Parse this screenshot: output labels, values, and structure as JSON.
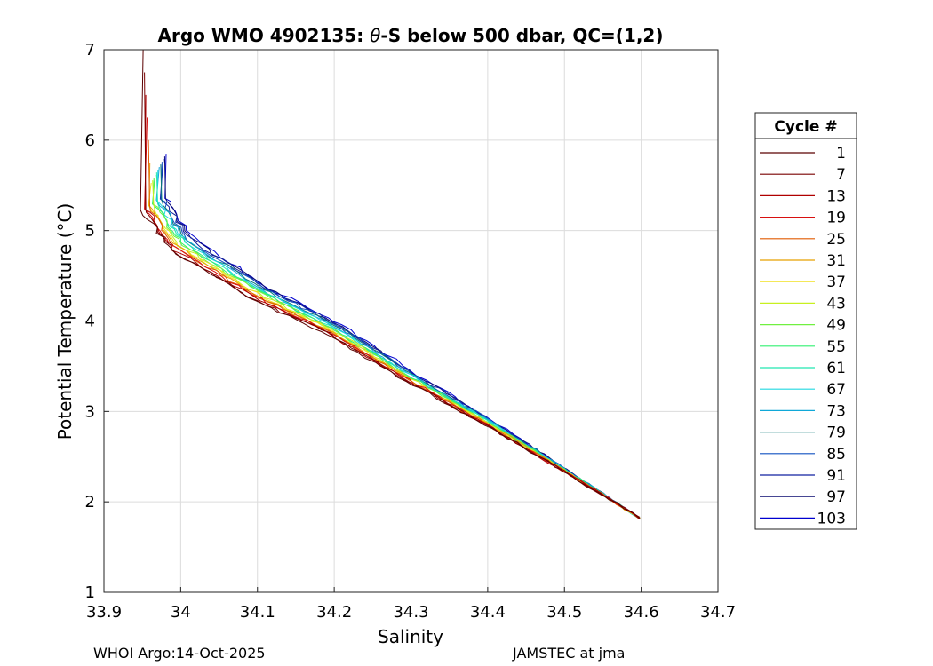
{
  "chart_data": {
    "type": "line",
    "title_prefix": "Argo WMO 4902135: ",
    "title_theta": "θ",
    "title_suffix": "-S below 500 dbar,  QC=(1,2)",
    "xlabel": "Salinity",
    "ylabel": "Potential Temperature (°C)",
    "xlim": [
      33.9,
      34.7
    ],
    "ylim": [
      1,
      7
    ],
    "xticks": [
      "33.9",
      "34",
      "34.1",
      "34.2",
      "34.3",
      "34.4",
      "34.5",
      "34.6",
      "34.7"
    ],
    "yticks": [
      "1",
      "2",
      "3",
      "4",
      "5",
      "6",
      "7"
    ],
    "grid": true,
    "legend_title": "Cycle #",
    "legend_position": "right-outside",
    "legend": [
      {
        "name": "1",
        "color": "#5a0000"
      },
      {
        "name": "7",
        "color": "#7a0000"
      },
      {
        "name": "13",
        "color": "#b00000"
      },
      {
        "name": "19",
        "color": "#d81010"
      },
      {
        "name": "25",
        "color": "#e05a00"
      },
      {
        "name": "31",
        "color": "#e8a000"
      },
      {
        "name": "37",
        "color": "#f0e020"
      },
      {
        "name": "43",
        "color": "#c8f020"
      },
      {
        "name": "49",
        "color": "#70f040"
      },
      {
        "name": "55",
        "color": "#30f070"
      },
      {
        "name": "61",
        "color": "#20e8b0"
      },
      {
        "name": "67",
        "color": "#20d8e0"
      },
      {
        "name": "73",
        "color": "#10a8d8"
      },
      {
        "name": "79",
        "color": "#0a7878"
      },
      {
        "name": "85",
        "color": "#1050c0"
      },
      {
        "name": "91",
        "color": "#1020a0"
      },
      {
        "name": "97",
        "color": "#0a0a70"
      },
      {
        "name": "103",
        "color": "#0000d0"
      }
    ],
    "series_shape": {
      "end_point": [
        34.598,
        1.82
      ],
      "anchors": [
        [
          34.598,
          1.82
        ],
        [
          34.5,
          2.35
        ],
        [
          34.4,
          2.88
        ],
        [
          34.3,
          3.37
        ],
        [
          34.2,
          3.9
        ],
        [
          34.1,
          4.32
        ],
        [
          34.0,
          4.85
        ],
        [
          33.96,
          5.35
        ]
      ]
    }
  },
  "footer": {
    "left": "WHOI Argo:14-Oct-2025",
    "right": "JAMSTEC at jma"
  }
}
